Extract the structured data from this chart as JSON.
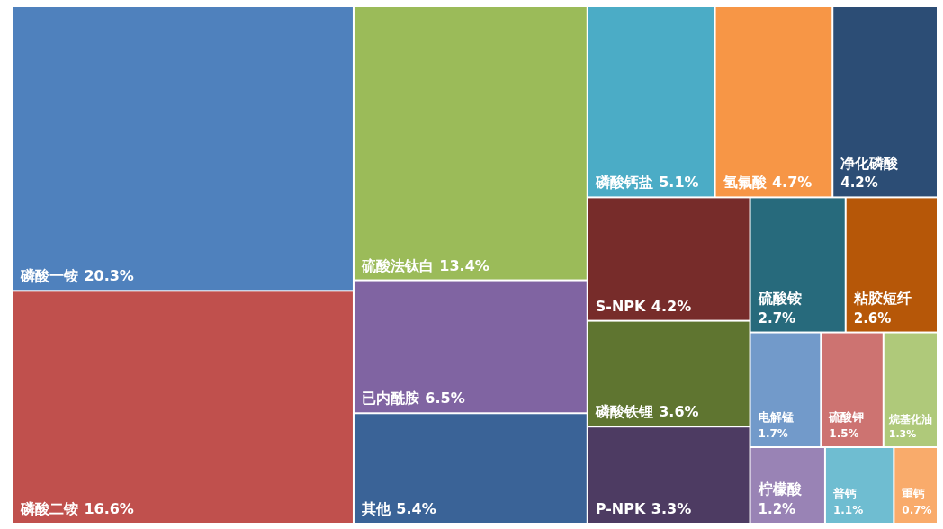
{
  "chart_data": {
    "type": "other",
    "categories": [
      "磷酸一铵",
      "磷酸二铵",
      "硫酸法钛白",
      "已内酰胺",
      "其他",
      "磷酸钙盐",
      "氢氟酸",
      "净化磷酸",
      "S-NPK",
      "磷酸铁锂",
      "P-NPK",
      "硫酸铵",
      "粘胶短纤",
      "电解锰",
      "硫酸钾",
      "烷基化油",
      "柠檬酸",
      "普钙",
      "重钙"
    ],
    "values": [
      20.3,
      16.6,
      13.4,
      6.5,
      5.4,
      5.1,
      4.7,
      4.2,
      4.2,
      3.6,
      3.3,
      2.7,
      2.6,
      1.7,
      1.5,
      1.3,
      1.2,
      1.1,
      0.7
    ],
    "value_labels": [
      "20.3%",
      "16.6%",
      "13.4%",
      "6.5%",
      "5.4%",
      "5.1%",
      "4.7%",
      "4.2%",
      "4.2%",
      "3.6%",
      "3.3%",
      "2.7%",
      "2.6%",
      "1.7%",
      "1.5%",
      "1.3%",
      "1.2%",
      "1.1%",
      "0.7%"
    ],
    "colors": [
      "#4f81bd",
      "#c0504d",
      "#9bbb59",
      "#8064a2",
      "#3a6397",
      "#4bacc6",
      "#f79646",
      "#2c4d75",
      "#772c2a",
      "#5f7530",
      "#4d3b62",
      "#276a7c",
      "#b65708",
      "#729aca",
      "#cd7371",
      "#afc97a",
      "#9983b5",
      "#6fbdd1",
      "#f9ab6b"
    ]
  }
}
